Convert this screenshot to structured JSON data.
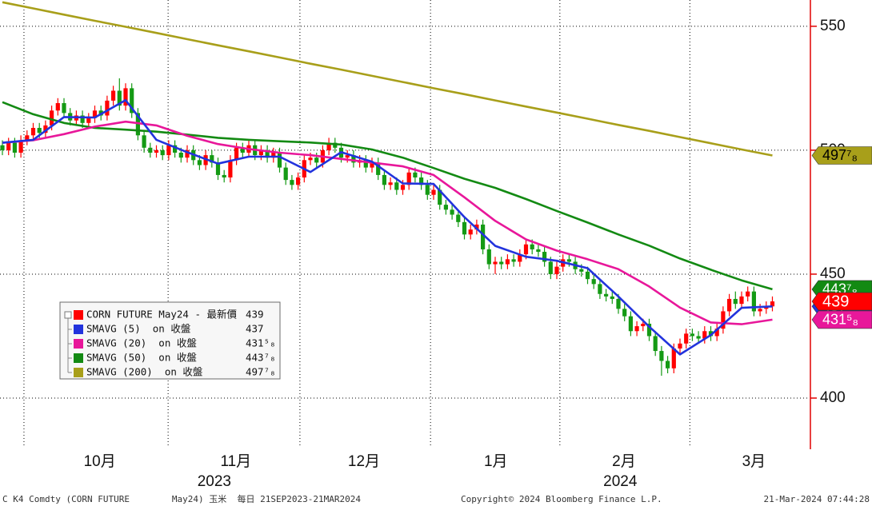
{
  "chart_data": {
    "type": "candlestick",
    "xlim": [
      -0.39,
      131.04
    ],
    "ylim": [
      380,
      560.6
    ],
    "yticks": [
      400,
      450,
      500,
      550
    ],
    "grid": true,
    "xticks": [
      {
        "value": 15.8,
        "label": "10月"
      },
      {
        "value": 37.9,
        "label": "11月"
      },
      {
        "value": 58.7,
        "label": "12月"
      },
      {
        "value": 80.1,
        "label": "1月"
      },
      {
        "value": 100.9,
        "label": "2月"
      },
      {
        "value": 122,
        "label": "3月"
      }
    ],
    "year_ticks": [
      {
        "value": 34.4,
        "label": "2023"
      },
      {
        "value": 100.3,
        "label": "2024"
      }
    ],
    "xgrid": [
      3.5,
      26.9,
      48.3,
      69.5,
      90.5,
      111.6
    ],
    "candles": {
      "name": "CORN FUTURE May24 - 最新價",
      "up_color": "#ff0000",
      "down_color": "#149a14",
      "open": [
        502,
        500,
        503,
        499,
        504,
        506,
        509,
        507,
        510,
        516,
        519,
        515,
        512,
        514,
        511,
        513,
        516,
        514,
        520,
        524,
        518,
        525,
        515,
        506,
        501,
        499,
        500,
        498,
        502,
        499,
        497,
        500,
        496,
        494,
        498,
        495,
        490,
        489,
        496,
        501,
        499,
        502,
        498,
        500,
        497,
        499,
        493,
        488,
        486,
        489,
        496,
        497,
        495,
        500,
        503,
        501,
        497,
        498,
        495,
        496,
        493,
        495,
        490,
        486,
        487,
        484,
        486,
        491,
        489,
        486,
        482,
        484,
        478,
        476,
        474,
        471,
        466,
        468,
        470,
        460,
        454,
        455,
        454,
        456,
        455,
        458,
        462,
        460,
        459,
        455,
        450,
        453,
        456,
        455,
        452,
        451,
        448,
        446,
        442,
        441,
        440,
        436,
        433,
        427,
        429,
        430,
        425,
        419,
        415,
        412,
        420,
        422,
        426,
        425,
        424,
        427,
        425,
        428,
        435,
        440,
        438,
        441,
        443,
        435,
        436,
        437
      ],
      "high": [
        504,
        505,
        505,
        506,
        508,
        511,
        511,
        512,
        518,
        521,
        521,
        517,
        516,
        516,
        515,
        518,
        518,
        522,
        526,
        529,
        527,
        527,
        517,
        508,
        503,
        502,
        502,
        504,
        504,
        501,
        502,
        502,
        498,
        500,
        500,
        497,
        492,
        498,
        503,
        503,
        504,
        504,
        502,
        502,
        501,
        501,
        495,
        490,
        491,
        498,
        499,
        499,
        502,
        505,
        505,
        503,
        500,
        500,
        498,
        498,
        497,
        497,
        492,
        489,
        489,
        488,
        493,
        493,
        491,
        488,
        486,
        486,
        480,
        478,
        476,
        473,
        470,
        472,
        472,
        462,
        457,
        457,
        458,
        458,
        460,
        464,
        464,
        462,
        461,
        457,
        455,
        458,
        458,
        457,
        454,
        453,
        450,
        448,
        444,
        443,
        442,
        438,
        435,
        431,
        432,
        432,
        427,
        421,
        417,
        422,
        424,
        428,
        428,
        427,
        429,
        429,
        430,
        437,
        442,
        443,
        443,
        445,
        445,
        438,
        439,
        441
      ],
      "low": [
        498,
        498,
        497,
        497,
        502,
        504,
        505,
        505,
        508,
        514,
        513,
        510,
        510,
        509,
        509,
        511,
        512,
        512,
        518,
        516,
        516,
        513,
        504,
        499,
        497,
        497,
        496,
        496,
        497,
        495,
        495,
        494,
        492,
        492,
        493,
        488,
        487,
        487,
        494,
        497,
        497,
        496,
        496,
        495,
        495,
        491,
        486,
        484,
        484,
        487,
        494,
        493,
        493,
        498,
        499,
        495,
        495,
        493,
        493,
        491,
        491,
        488,
        484,
        484,
        482,
        482,
        484,
        487,
        484,
        480,
        480,
        476,
        474,
        472,
        469,
        464,
        464,
        466,
        458,
        452,
        450,
        452,
        452,
        453,
        453,
        456,
        458,
        457,
        453,
        448,
        448,
        451,
        453,
        450,
        449,
        446,
        444,
        440,
        439,
        438,
        434,
        431,
        425,
        425,
        427,
        423,
        417,
        409,
        410,
        410,
        418,
        420,
        423,
        422,
        422,
        423,
        423,
        426,
        433,
        436,
        436,
        439,
        433,
        433,
        434,
        435
      ],
      "close": [
        500,
        503,
        499,
        504,
        506,
        509,
        507,
        510,
        516,
        519,
        515,
        512,
        514,
        511,
        513,
        516,
        514,
        520,
        524,
        518,
        525,
        515,
        506,
        501,
        499,
        500,
        498,
        502,
        499,
        497,
        500,
        496,
        494,
        498,
        495,
        490,
        489,
        496,
        501,
        499,
        502,
        498,
        500,
        497,
        499,
        493,
        488,
        486,
        489,
        496,
        497,
        495,
        500,
        503,
        501,
        497,
        498,
        495,
        496,
        493,
        495,
        490,
        486,
        487,
        484,
        486,
        491,
        489,
        486,
        482,
        484,
        478,
        476,
        474,
        471,
        466,
        468,
        470,
        460,
        454,
        455,
        454,
        456,
        455,
        458,
        462,
        460,
        459,
        455,
        450,
        453,
        456,
        455,
        452,
        451,
        448,
        446,
        442,
        441,
        440,
        436,
        433,
        427,
        429,
        430,
        425,
        419,
        415,
        412,
        420,
        422,
        426,
        425,
        424,
        427,
        425,
        428,
        435,
        440,
        438,
        441,
        443,
        435,
        436,
        437,
        439
      ]
    },
    "series": [
      {
        "name": "SMAVG (5)  on 收盤",
        "color": "#2233dd",
        "x": [
          0,
          5,
          10,
          15,
          20,
          25,
          30,
          35,
          40,
          45,
          50,
          55,
          60,
          65,
          70,
          75,
          80,
          85,
          90,
          95,
          100,
          105,
          110,
          115,
          120,
          125
        ],
        "values": [
          503,
          504.2,
          513.4,
          513.2,
          520.2,
          504.2,
          499.2,
          494.6,
          497.4,
          497.4,
          491.2,
          499.2,
          495.4,
          486.6,
          486.4,
          473,
          461.4,
          457,
          455.4,
          452.4,
          441,
          428.8,
          417.6,
          425.4,
          436.4,
          437
        ]
      },
      {
        "name": "SMAVG (20)  on 收盤",
        "color": "#e8179a",
        "x": [
          0,
          5,
          10,
          15,
          20,
          25,
          30,
          35,
          40,
          45,
          50,
          55,
          60,
          65,
          70,
          75,
          80,
          85,
          90,
          95,
          100,
          105,
          110,
          115,
          120,
          125
        ],
        "values": [
          503,
          504,
          506.5,
          509.5,
          511.5,
          510,
          505.8,
          502.5,
          500.5,
          499,
          498,
          496.5,
          495,
          493.5,
          490,
          481,
          471.5,
          464,
          459.5,
          456,
          452,
          445,
          436.5,
          430.5,
          429.8,
          431.625
        ],
        "last_label": "431⁵₈"
      },
      {
        "name": "SMAVG (50)  on 收盤",
        "color": "#138a13",
        "x": [
          0,
          5,
          10,
          15,
          20,
          25,
          30,
          35,
          40,
          45,
          50,
          55,
          60,
          65,
          70,
          75,
          80,
          85,
          90,
          95,
          100,
          105,
          110,
          115,
          120,
          125
        ],
        "values": [
          519.4,
          514.5,
          511,
          509,
          508.3,
          507.5,
          506.3,
          505,
          504.2,
          503.6,
          503.1,
          502.3,
          500.3,
          497,
          492.8,
          488.5,
          484.8,
          480.3,
          475.5,
          470.8,
          466,
          461.5,
          456.3,
          451.8,
          447.5,
          443.875
        ],
        "last_label": "443⁷₈"
      },
      {
        "name": "SMAVG (200)  on 收盤",
        "color": "#a89f1a",
        "x": [
          0,
          5,
          10,
          15,
          20,
          25,
          30,
          35,
          40,
          45,
          50,
          55,
          60,
          65,
          70,
          75,
          80,
          85,
          90,
          95,
          100,
          105,
          110,
          115,
          120,
          125
        ],
        "values": [
          559.7,
          557.2,
          554.7,
          552.2,
          549.8,
          547.3,
          544.8,
          542.3,
          539.9,
          537.4,
          534.9,
          532.5,
          530,
          527.5,
          525,
          522.6,
          520.1,
          517.6,
          515.2,
          512.7,
          510.2,
          507.8,
          505.3,
          502.8,
          500.3,
          497.875
        ],
        "last_label": "497⁷₈"
      }
    ]
  },
  "footer": {
    "left": "C K4 Comdty (CORN FUTURE        May24) 玉米  每日 21SEP2023-21MAR2024",
    "center": "Copyright© 2024 Bloomberg Finance L.P.",
    "right": "21-Mar-2024 07:44:28"
  }
}
